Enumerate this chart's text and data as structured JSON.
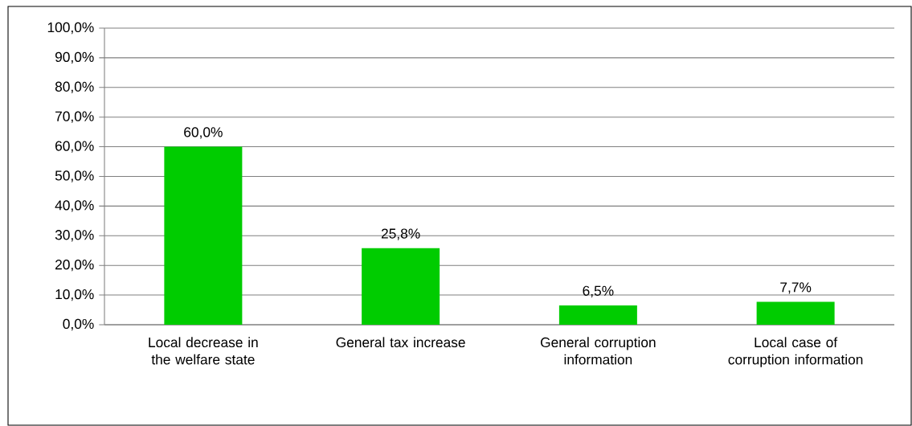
{
  "chart_data": {
    "type": "bar",
    "categories": [
      "Local decrease in the welfare state",
      "General tax increase",
      "General corruption information",
      "Local case of corruption information"
    ],
    "values": [
      60.0,
      25.8,
      6.5,
      7.7
    ],
    "value_labels": [
      "60,0%",
      "25,8%",
      "6,5%",
      "7,7%"
    ],
    "color": "#00cc00",
    "ylim": [
      0,
      100
    ],
    "yticks": [
      {
        "value": 0,
        "label": "0,0%"
      },
      {
        "value": 10,
        "label": "10,0%"
      },
      {
        "value": 20,
        "label": "20,0%"
      },
      {
        "value": 30,
        "label": "30,0%"
      },
      {
        "value": 40,
        "label": "40,0%"
      },
      {
        "value": 50,
        "label": "50,0%"
      },
      {
        "value": 60,
        "label": "60,0%"
      },
      {
        "value": 70,
        "label": "70,0%"
      },
      {
        "value": 80,
        "label": "80,0%"
      },
      {
        "value": 90,
        "label": "90,0%"
      },
      {
        "value": 100,
        "label": "100,0%"
      }
    ],
    "grid": "y"
  }
}
